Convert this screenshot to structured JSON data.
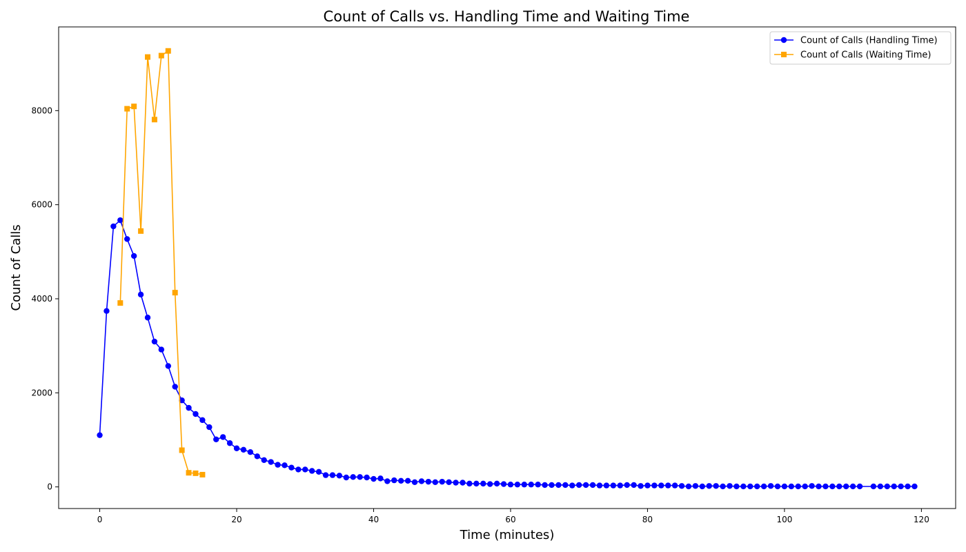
{
  "chart_data": {
    "type": "line",
    "title": "Count of Calls vs. Handling Time and Waiting Time",
    "xlabel": "Time (minutes)",
    "ylabel": "Count of Calls",
    "xlim": [
      -6,
      125
    ],
    "ylim": [
      -460,
      9780
    ],
    "xticks": [
      0,
      20,
      40,
      60,
      80,
      100,
      120
    ],
    "yticks": [
      0,
      2000,
      4000,
      6000,
      8000
    ],
    "grid": false,
    "legend_position": "top-right",
    "series": [
      {
        "name": "Count of Calls (Handling Time)",
        "color": "#0000ff",
        "marker": "circle",
        "x": [
          0,
          1,
          2,
          3,
          4,
          5,
          6,
          7,
          8,
          9,
          10,
          11,
          12,
          13,
          14,
          15,
          16,
          17,
          18,
          19,
          20,
          21,
          22,
          23,
          24,
          25,
          26,
          27,
          28,
          29,
          30,
          31,
          32,
          33,
          34,
          35,
          36,
          37,
          38,
          39,
          40,
          41,
          42,
          43,
          44,
          45,
          46,
          47,
          48,
          49,
          50,
          51,
          52,
          53,
          54,
          55,
          56,
          57,
          58,
          59,
          60,
          61,
          62,
          63,
          64,
          65,
          66,
          67,
          68,
          69,
          70,
          71,
          72,
          73,
          74,
          75,
          76,
          77,
          78,
          79,
          80,
          81,
          82,
          83,
          84,
          85,
          86,
          87,
          88,
          89,
          90,
          91,
          92,
          93,
          94,
          95,
          96,
          97,
          98,
          99,
          100,
          101,
          102,
          103,
          104,
          105,
          106,
          107,
          108,
          109,
          110,
          111,
          113,
          114,
          115,
          116,
          117,
          118,
          119
        ],
        "y": [
          1100,
          3740,
          5540,
          5670,
          5270,
          4910,
          4090,
          3600,
          3090,
          2920,
          2570,
          2130,
          1840,
          1680,
          1550,
          1420,
          1270,
          1010,
          1060,
          930,
          820,
          790,
          740,
          650,
          570,
          530,
          470,
          460,
          410,
          370,
          370,
          340,
          320,
          250,
          250,
          240,
          200,
          210,
          210,
          200,
          170,
          180,
          120,
          140,
          130,
          130,
          100,
          120,
          110,
          100,
          110,
          100,
          90,
          90,
          70,
          70,
          70,
          60,
          70,
          60,
          50,
          50,
          50,
          50,
          50,
          40,
          40,
          40,
          40,
          30,
          40,
          40,
          40,
          30,
          30,
          30,
          30,
          40,
          40,
          20,
          30,
          30,
          30,
          30,
          30,
          20,
          10,
          20,
          10,
          20,
          20,
          10,
          20,
          10,
          10,
          10,
          10,
          10,
          20,
          10,
          10,
          10,
          10,
          10,
          20,
          10,
          10,
          10,
          10,
          10,
          10,
          10,
          10,
          10,
          10,
          10,
          10,
          10,
          10
        ]
      },
      {
        "name": "Count of Calls (Waiting Time)",
        "color": "#ffa500",
        "marker": "square",
        "x": [
          3,
          4,
          5,
          6,
          7,
          8,
          9,
          10,
          11,
          12,
          13,
          14,
          15
        ],
        "y": [
          3910,
          8040,
          8090,
          5440,
          9140,
          7810,
          9170,
          9270,
          4130,
          780,
          300,
          290,
          260
        ]
      }
    ]
  }
}
